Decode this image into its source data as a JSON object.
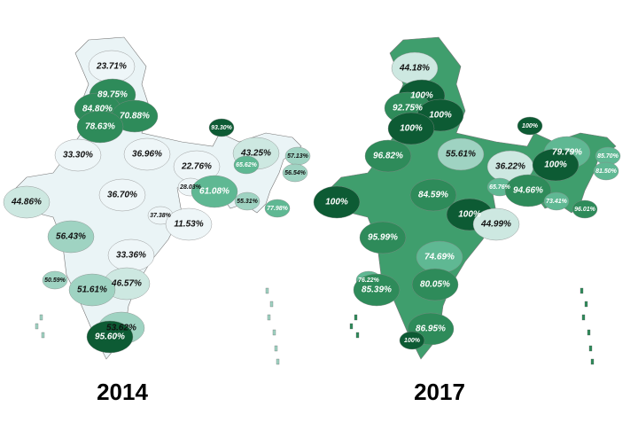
{
  "maps": [
    {
      "year": "2014",
      "labels": [
        "23.71%",
        "89.75%",
        "84.80%",
        "70.88%",
        "78.63%",
        "93.30%",
        "33.30%",
        "36.96%",
        "22.76%",
        "43.25%",
        "57.13%",
        "65.62%",
        "56.54%",
        "44.86%",
        "36.70%",
        "28.03%",
        "61.08%",
        "55.31%",
        "77.98%",
        "37.38%",
        "11.53%",
        "56.43%",
        "33.36%",
        "46.57%",
        "50.59%",
        "51.61%",
        "53.62%",
        "95.60%"
      ]
    },
    {
      "year": "2017",
      "labels": [
        "44.18%",
        "100%",
        "92.75%",
        "100%",
        "100%",
        "100%",
        "96.82%",
        "55.61%",
        "36.22%",
        "79.79%",
        "85.70%",
        "100%",
        "81.50%",
        "100%",
        "84.59%",
        "65.76%",
        "94.66%",
        "73.41%",
        "96.01%",
        "100%",
        "44.99%",
        "95.99%",
        "74.69%",
        "76.22%",
        "85.39%",
        "80.05%",
        "86.95%",
        "100%"
      ]
    }
  ]
}
